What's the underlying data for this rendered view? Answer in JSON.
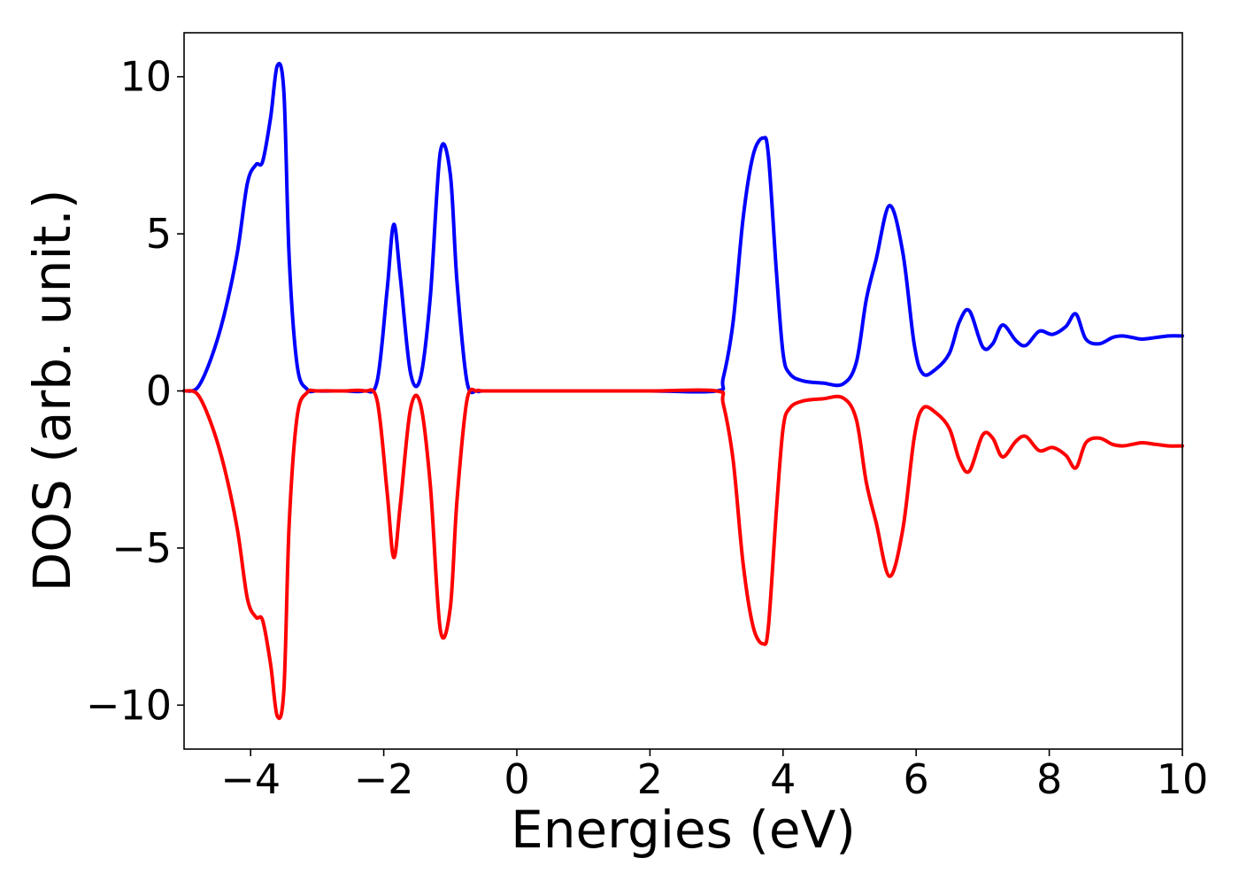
{
  "chart_data": {
    "type": "line",
    "title": "",
    "xlabel": "Energies (eV)",
    "ylabel": "DOS (arb. unit.)",
    "xlim": [
      -5,
      10
    ],
    "ylim": [
      -11.4,
      11.4
    ],
    "grid": false,
    "x_ticks": [
      -4,
      -2,
      0,
      2,
      4,
      6,
      8,
      10
    ],
    "x_tick_labels": [
      "−4",
      "−2",
      "0",
      "2",
      "4",
      "6",
      "8",
      "10"
    ],
    "y_ticks": [
      10,
      5,
      0,
      -5,
      -10
    ],
    "y_tick_labels": [
      "10",
      "5",
      "0",
      "−5",
      "−10"
    ],
    "series": [
      {
        "color": "#0000ff",
        "x": [
          -5.0,
          -4.8,
          -4.6,
          -4.4,
          -4.2,
          -4.05,
          -3.92,
          -3.82,
          -3.7,
          -3.6,
          -3.5,
          -3.42,
          -3.3,
          -3.15,
          -3.0,
          -2.6,
          -2.3,
          -2.1,
          -1.95,
          -1.85,
          -1.75,
          -1.6,
          -1.45,
          -1.3,
          -1.15,
          -1.0,
          -0.9,
          -0.75,
          -0.6,
          -0.5,
          0.0,
          1.0,
          2.0,
          3.0,
          3.1,
          3.25,
          3.4,
          3.55,
          3.7,
          3.78,
          3.9,
          4.0,
          4.1,
          4.3,
          4.6,
          4.9,
          5.1,
          5.25,
          5.4,
          5.6,
          5.8,
          5.97,
          6.1,
          6.3,
          6.5,
          6.65,
          6.8,
          7.0,
          7.15,
          7.3,
          7.5,
          7.65,
          7.85,
          8.05,
          8.25,
          8.4,
          8.55,
          8.75,
          8.95,
          9.1,
          9.25,
          9.4,
          9.6,
          9.8,
          10.0
        ],
        "y": [
          0.0,
          0.1,
          1.0,
          2.4,
          4.4,
          6.6,
          7.2,
          7.3,
          8.7,
          10.35,
          9.5,
          4.2,
          0.8,
          0.05,
          0.0,
          0.0,
          0.0,
          0.3,
          3.2,
          5.3,
          3.6,
          0.6,
          0.4,
          3.0,
          7.6,
          6.9,
          3.5,
          0.3,
          0.0,
          0.0,
          0.0,
          0.0,
          0.0,
          0.0,
          0.4,
          2.2,
          5.5,
          7.5,
          8.05,
          7.5,
          3.8,
          1.2,
          0.55,
          0.32,
          0.25,
          0.22,
          0.9,
          2.9,
          4.2,
          5.9,
          4.4,
          1.5,
          0.55,
          0.7,
          1.2,
          2.2,
          2.55,
          1.4,
          1.5,
          2.1,
          1.6,
          1.45,
          1.9,
          1.8,
          2.05,
          2.45,
          1.65,
          1.5,
          1.7,
          1.75,
          1.7,
          1.65,
          1.7,
          1.75,
          1.75
        ]
      },
      {
        "color": "#ff0000",
        "mirror_of": 0
      }
    ]
  }
}
